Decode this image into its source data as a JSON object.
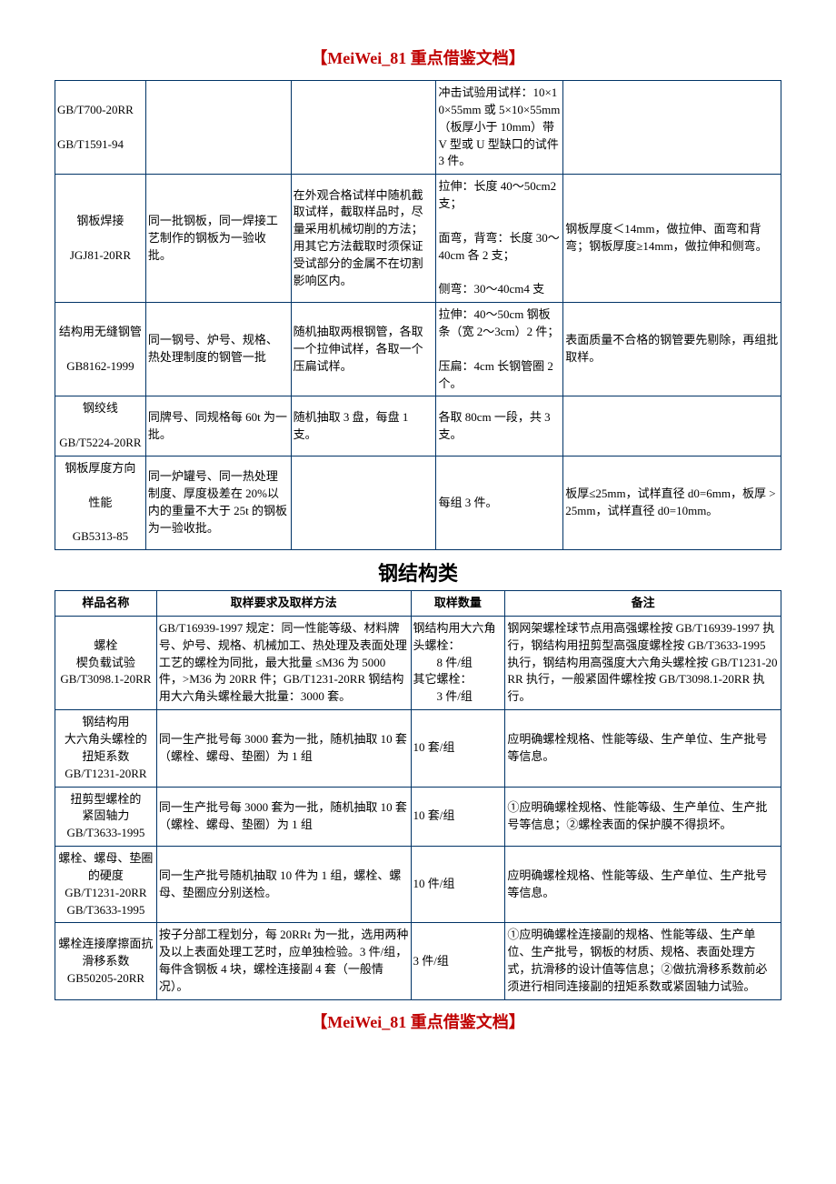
{
  "header": "【MeiWei_81 重点借鉴文档】",
  "footer": "【MeiWei_81 重点借鉴文档】",
  "table1": {
    "rows": [
      {
        "c1": "GB/T700-20RR\n\nGB/T1591-94",
        "c2": "",
        "c3": "",
        "c4": "冲击试验用试样：10×10×55mm 或 5×10×55mm（板厚小于 10mm）带 V 型或 U 型缺口的试件 3 件。",
        "c5": ""
      },
      {
        "c1": "钢板焊接\n\nJGJ81-20RR",
        "c2": "同一批钢板，同一焊接工艺制作的钢板为一验收批。",
        "c3": "在外观合格试样中随机截取试样，截取样品时，尽量采用机械切削的方法；用其它方法截取时须保证受试部分的金属不在切割影响区内。",
        "c4": "拉伸：长度 40～50cm2 支；\n\n面弯，背弯：长度 30～40cm 各 2 支；\n\n侧弯：30～40cm4 支",
        "c5": "钢板厚度＜14mm，做拉伸、面弯和背弯；钢板厚度≥14mm，做拉伸和侧弯。"
      },
      {
        "c1": "结构用无缝钢管\n\nGB8162-1999",
        "c2": "同一钢号、炉号、规格、热处理制度的钢管一批",
        "c3": "随机抽取两根钢管，各取一个拉伸试样，各取一个压扁试样。",
        "c4": "拉伸：40～50cm 钢板条（宽 2～3cm）2 件；\n\n压扁：4cm 长钢管圈 2 个。",
        "c5": "表面质量不合格的钢管要先剔除，再组批取样。"
      },
      {
        "c1": "钢绞线\n\nGB/T5224-20RR",
        "c2": "同牌号、同规格每 60t 为一批。",
        "c3": "随机抽取 3 盘，每盘 1 支。",
        "c4": "各取 80cm 一段，共 3 支。",
        "c5": ""
      },
      {
        "c1": "钢板厚度方向\n\n性能\n\nGB5313-85",
        "c2": "同一炉罐号、同一热处理制度、厚度极差在 20%以内的重量不大于 25t 的钢板为一验收批。",
        "c3": "",
        "c4": "每组 3 件。",
        "c5": "板厚≤25mm，试样直径 d0=6mm，板厚 >25mm，试样直径 d0=10mm。"
      }
    ]
  },
  "section2_title": "钢结构类",
  "table2": {
    "headers": [
      "样品名称",
      "取样要求及取样方法",
      "取样数量",
      "备注"
    ],
    "rows": [
      {
        "c1": "螺栓\n楔负载试验\nGB/T3098.1-20RR",
        "c2": "GB/T16939-1997 规定：同一性能等级、材料牌号、炉号、规格、机械加工、热处理及表面处理工艺的螺栓为同批，最大批量 ≤M36 为 5000 件，>M36 为 20RR 件；GB/T1231-20RR 钢结构用大六角头螺栓最大批量：3000 套。",
        "c3": "钢结构用大六角头螺栓：\n　　8 件/组\n其它螺栓：\n　　3 件/组",
        "c4": "钢网架螺栓球节点用高强螺栓按 GB/T16939-1997 执行，钢结构用扭剪型高强度螺栓按 GB/T3633-1995 执行，钢结构用高强度大六角头螺栓按 GB/T1231-20RR 执行，一般紧固件螺栓按 GB/T3098.1-20RR 执行。"
      },
      {
        "c1": "钢结构用\n大六角头螺栓的\n扭矩系数\nGB/T1231-20RR",
        "c2": "同一生产批号每 3000 套为一批，随机抽取 10 套（螺栓、螺母、垫圈）为 1 组",
        "c3": "10 套/组",
        "c4": "应明确螺栓规格、性能等级、生产单位、生产批号等信息。"
      },
      {
        "c1": "扭剪型螺栓的\n紧固轴力\nGB/T3633-1995",
        "c2": "同一生产批号每 3000 套为一批，随机抽取 10 套（螺栓、螺母、垫圈）为 1 组",
        "c3": "10 套/组",
        "c4": "①应明确螺栓规格、性能等级、生产单位、生产批号等信息；②螺栓表面的保护膜不得损坏。"
      },
      {
        "c1": "螺栓、螺母、垫圈\n的硬度\nGB/T1231-20RR\nGB/T3633-1995",
        "c2": "同一生产批号随机抽取 10 件为 1 组，螺栓、螺母、垫圈应分别送检。",
        "c3": "10 件/组",
        "c4": "应明确螺栓规格、性能等级、生产单位、生产批号等信息。"
      },
      {
        "c1": "螺栓连接摩擦面抗滑移系数\nGB50205-20RR",
        "c2": "按子分部工程划分，每 20RRt 为一批，选用两种及以上表面处理工艺时，应单独检验。3 件/组，每件含钢板 4 块，螺栓连接副 4 套（一般情况）。",
        "c3": "3 件/组",
        "c4": "①应明确螺栓连接副的规格、性能等级、生产单位、生产批号，钢板的材质、规格、表面处理方式，抗滑移的设计值等信息；②做抗滑移系数前必须进行相同连接副的扭矩系数或紧固轴力试验。"
      }
    ]
  }
}
